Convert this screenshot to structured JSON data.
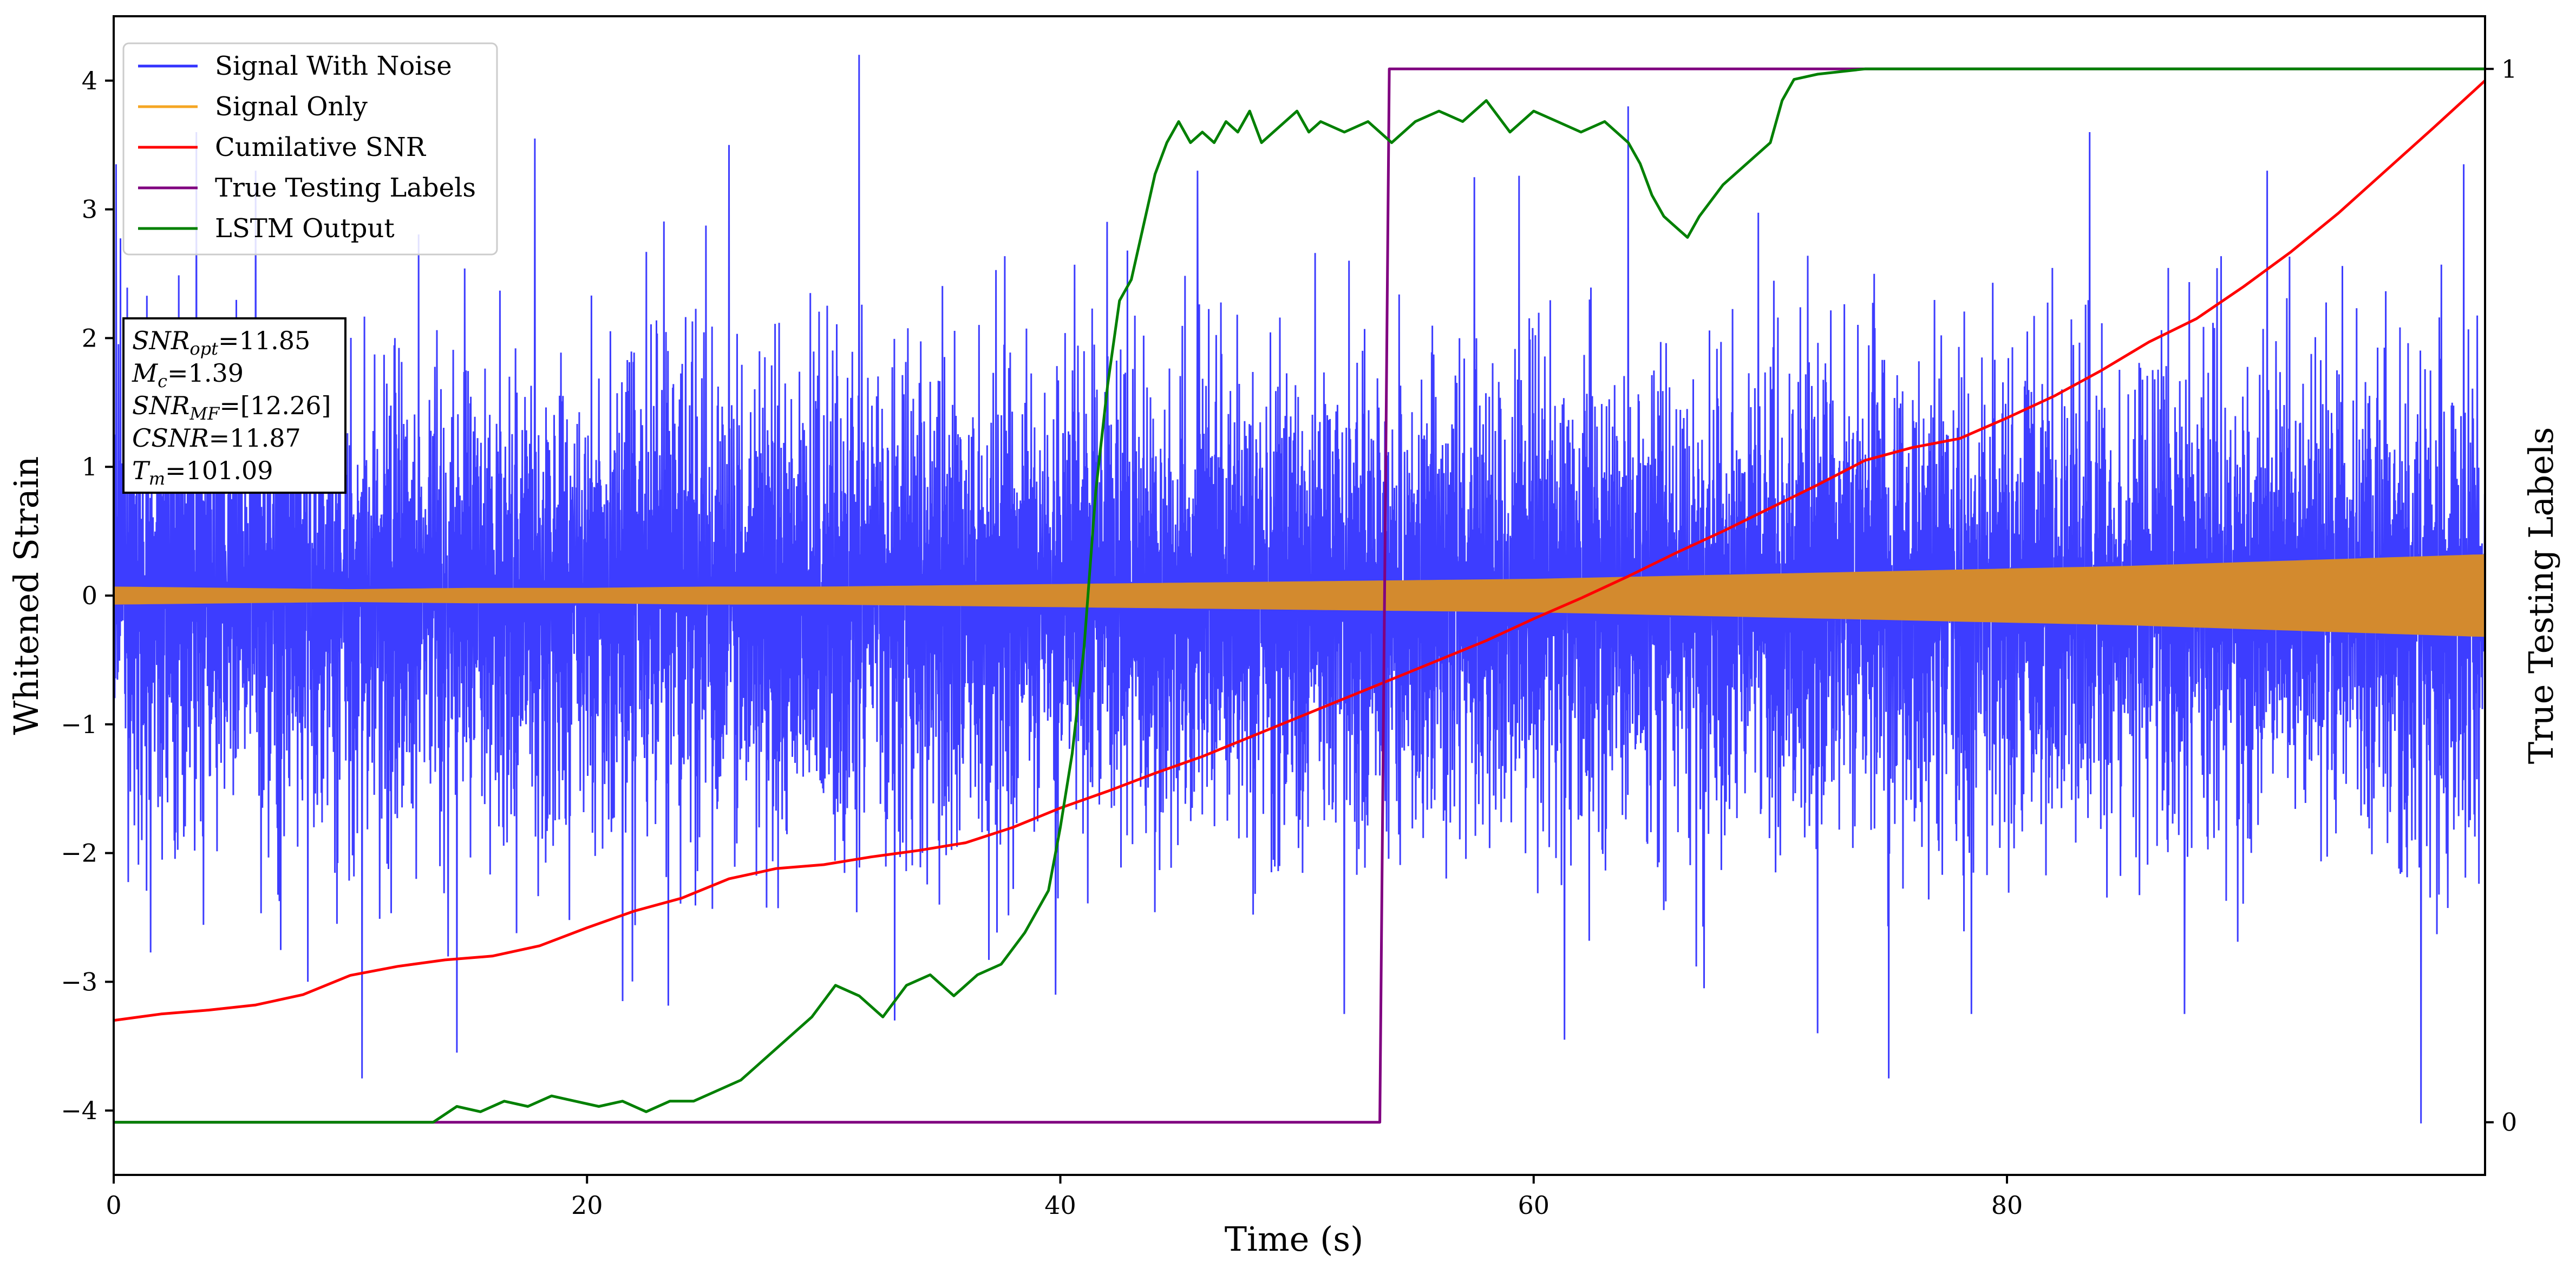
{
  "chart_data": {
    "type": "line",
    "xlabel": "Time (s)",
    "ylabel": "Whitened Strain",
    "y2label": "True Testing Labels",
    "xlim": [
      0,
      100.2
    ],
    "ylim": [
      -4.5,
      4.5
    ],
    "y2lim": [
      -0.05,
      1.05
    ],
    "x_ticks": [
      0,
      20,
      40,
      60,
      80
    ],
    "x_tick_labels": [
      "0",
      "20",
      "40",
      "60",
      "80"
    ],
    "y_ticks": [
      -4,
      -3,
      -2,
      -1,
      0,
      1,
      2,
      3,
      4
    ],
    "y_tick_labels": [
      "−4",
      "−3",
      "−2",
      "−1",
      "0",
      "1",
      "2",
      "3",
      "4"
    ],
    "y2_ticks": [
      0,
      1
    ],
    "y2_tick_labels": [
      "0",
      "1"
    ],
    "grid": false,
    "legend_position": "top-left",
    "series": [
      {
        "name": "Signal With Noise",
        "axis": "left",
        "color": "#3333ff",
        "style": "noise",
        "envelope": {
          "x": [
            0,
            20,
            40,
            60,
            80,
            100
          ],
          "amplitude": [
            2.3,
            2.3,
            2.3,
            2.3,
            2.3,
            2.3
          ]
        },
        "peaks": [
          {
            "x": 0.1,
            "y": 3.35
          },
          {
            "x": 3.5,
            "y": 3.6
          },
          {
            "x": 6.0,
            "y": 3.3
          },
          {
            "x": 8.2,
            "y": -3.0
          },
          {
            "x": 10.5,
            "y": -3.75
          },
          {
            "x": 14.5,
            "y": -3.55
          },
          {
            "x": 17.8,
            "y": 3.55
          },
          {
            "x": 21.5,
            "y": -3.15
          },
          {
            "x": 26.0,
            "y": 3.5
          },
          {
            "x": 31.5,
            "y": 4.2
          },
          {
            "x": 33.0,
            "y": -3.3
          },
          {
            "x": 39.8,
            "y": -3.1
          },
          {
            "x": 45.8,
            "y": 3.3
          },
          {
            "x": 52.0,
            "y": -3.25
          },
          {
            "x": 57.5,
            "y": 3.25
          },
          {
            "x": 61.3,
            "y": -3.45
          },
          {
            "x": 64.0,
            "y": 3.8
          },
          {
            "x": 67.2,
            "y": -3.05
          },
          {
            "x": 72.0,
            "y": -3.4
          },
          {
            "x": 75.0,
            "y": -3.75
          },
          {
            "x": 78.5,
            "y": -3.25
          },
          {
            "x": 83.5,
            "y": 3.6
          },
          {
            "x": 87.5,
            "y": -3.25
          },
          {
            "x": 91.0,
            "y": 3.3
          },
          {
            "x": 97.5,
            "y": -4.1
          },
          {
            "x": 99.3,
            "y": 3.35
          }
        ]
      },
      {
        "name": "Signal Only",
        "axis": "left",
        "color": "#f5a623",
        "band_color": "#d38a2e",
        "style": "band",
        "x": [
          0,
          5,
          10,
          15,
          20,
          25,
          30,
          35,
          40,
          45,
          50,
          55,
          60,
          65,
          70,
          75,
          80,
          85,
          90,
          95,
          100
        ],
        "amplitude": [
          0.07,
          0.06,
          0.05,
          0.06,
          0.06,
          0.07,
          0.07,
          0.08,
          0.09,
          0.1,
          0.11,
          0.12,
          0.13,
          0.15,
          0.17,
          0.19,
          0.21,
          0.23,
          0.26,
          0.29,
          0.32
        ]
      },
      {
        "name": "Cumilative SNR",
        "axis": "left",
        "color": "#ff0000",
        "style": "line",
        "x": [
          0,
          2,
          4,
          6,
          8,
          10,
          12,
          14,
          16,
          18,
          20,
          22,
          24,
          26,
          28,
          30,
          32,
          34,
          36,
          38,
          40,
          42,
          44,
          46,
          48,
          50,
          52,
          54,
          56,
          58,
          60,
          62,
          64,
          66,
          68,
          70,
          72,
          74,
          76,
          78,
          80,
          82,
          84,
          86,
          88,
          90,
          92,
          94,
          96,
          98,
          100.2
        ],
        "y": [
          -3.3,
          -3.25,
          -3.22,
          -3.18,
          -3.1,
          -2.95,
          -2.88,
          -2.83,
          -2.8,
          -2.72,
          -2.58,
          -2.45,
          -2.35,
          -2.2,
          -2.12,
          -2.09,
          -2.03,
          -1.98,
          -1.92,
          -1.8,
          -1.65,
          -1.52,
          -1.38,
          -1.25,
          -1.1,
          -0.95,
          -0.8,
          -0.65,
          -0.5,
          -0.35,
          -0.18,
          -0.02,
          0.15,
          0.33,
          0.5,
          0.68,
          0.86,
          1.05,
          1.15,
          1.22,
          1.38,
          1.55,
          1.75,
          1.97,
          2.15,
          2.4,
          2.67,
          2.97,
          3.3,
          3.63,
          4.0
        ]
      },
      {
        "name": "True Testing Labels",
        "axis": "right",
        "color": "#800080",
        "style": "line",
        "x": [
          0,
          53.5,
          53.9,
          100.2
        ],
        "y": [
          0,
          0,
          1,
          1
        ]
      },
      {
        "name": "LSTM Output",
        "axis": "right",
        "color": "#008000",
        "style": "line",
        "x": [
          0,
          13.5,
          14.5,
          15.5,
          16.5,
          17.5,
          18.5,
          19.5,
          20.5,
          21.5,
          22.5,
          23.5,
          24.5,
          25.5,
          26.5,
          27.5,
          28.5,
          29.5,
          30.5,
          31.5,
          32.5,
          33.5,
          34.5,
          35.5,
          36.5,
          37.5,
          38.5,
          39.5,
          40,
          40.5,
          41,
          41.5,
          42,
          42.5,
          43,
          43.5,
          44,
          44.5,
          45,
          45.5,
          46,
          46.5,
          47,
          47.5,
          48,
          48.5,
          49,
          49.5,
          50,
          50.5,
          51,
          52,
          53,
          54,
          55,
          56,
          57,
          58,
          59,
          60,
          61,
          62,
          63,
          64,
          64.5,
          65,
          65.5,
          66,
          66.5,
          67,
          68,
          69,
          70,
          70.5,
          71,
          72,
          74,
          76,
          80,
          90,
          100.2
        ],
        "y": [
          0,
          0.0,
          0.015,
          0.01,
          0.02,
          0.015,
          0.025,
          0.02,
          0.015,
          0.02,
          0.01,
          0.02,
          0.02,
          0.03,
          0.04,
          0.06,
          0.08,
          0.1,
          0.13,
          0.12,
          0.1,
          0.13,
          0.14,
          0.12,
          0.14,
          0.15,
          0.18,
          0.22,
          0.28,
          0.35,
          0.45,
          0.6,
          0.7,
          0.78,
          0.8,
          0.85,
          0.9,
          0.93,
          0.95,
          0.93,
          0.94,
          0.93,
          0.95,
          0.94,
          0.96,
          0.93,
          0.94,
          0.95,
          0.96,
          0.94,
          0.95,
          0.94,
          0.95,
          0.93,
          0.95,
          0.96,
          0.95,
          0.97,
          0.94,
          0.96,
          0.95,
          0.94,
          0.95,
          0.93,
          0.91,
          0.88,
          0.86,
          0.85,
          0.84,
          0.86,
          0.89,
          0.91,
          0.93,
          0.97,
          0.99,
          0.995,
          1.0,
          1.0,
          1.0,
          1.0,
          1.0
        ]
      }
    ],
    "info_box": {
      "lines": [
        {
          "main": "SNR",
          "sub": "opt",
          "value": "=11.85"
        },
        {
          "main": "M",
          "sub": "c",
          "value": "=1.39"
        },
        {
          "main": "SNR",
          "sub": "MF",
          "value": "=[12.26]"
        },
        {
          "main": "CSNR",
          "sub": "",
          "value": "=11.87"
        },
        {
          "main": "T",
          "sub": "m",
          "value": "=101.09"
        }
      ]
    }
  }
}
